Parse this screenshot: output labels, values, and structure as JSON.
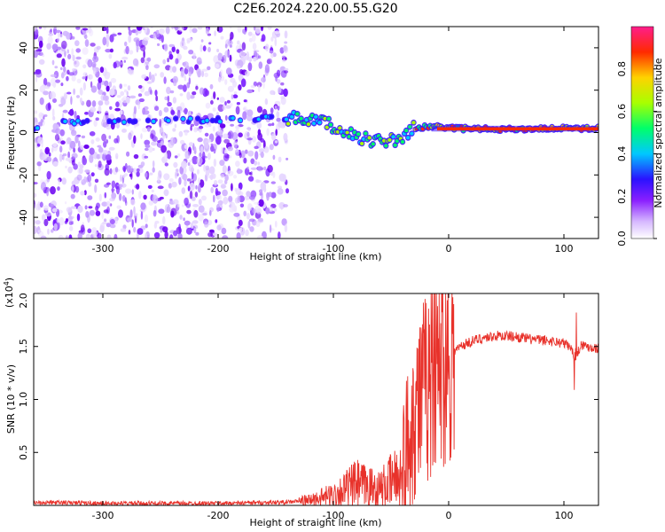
{
  "chart_data": [
    {
      "type": "heatmap",
      "title": "C2E6.2024.220.00.55.G20",
      "xlabel": "Height of straight line (km)",
      "ylabel": "Frequency (Hz)",
      "xlim": [
        -360,
        130
      ],
      "ylim": [
        -50,
        50
      ],
      "xticks": [
        -300,
        -200,
        -100,
        0,
        100
      ],
      "yticks": [
        -40,
        -20,
        0,
        20,
        40
      ],
      "colorbar": {
        "label": "Normalized spectral amplitude",
        "range": [
          0.0,
          1.0
        ],
        "ticks": [
          0.0,
          0.2,
          0.4,
          0.6,
          0.8
        ]
      },
      "noise_region_x": [
        -360,
        -140
      ],
      "ridge_frequency_hz": [
        {
          "x": -350,
          "y": 5
        },
        {
          "x": -200,
          "y": 6
        },
        {
          "x": -140,
          "y": 7
        },
        {
          "x": -110,
          "y": 5
        },
        {
          "x": -90,
          "y": 0
        },
        {
          "x": -70,
          "y": -3
        },
        {
          "x": -55,
          "y": -5
        },
        {
          "x": -40,
          "y": -2
        },
        {
          "x": -30,
          "y": 2
        },
        {
          "x": -15,
          "y": 3
        },
        {
          "x": 0,
          "y": 2
        },
        {
          "x": 50,
          "y": 1.5
        },
        {
          "x": 90,
          "y": 2
        },
        {
          "x": 130,
          "y": 2
        }
      ],
      "grid": false
    },
    {
      "type": "line",
      "xlabel": "Height of straight line (km)",
      "ylabel": "SNR (10 * v/v)",
      "y_multiplier_label": "(x10",
      "y_multiplier_exp": "4",
      "xlim": [
        -360,
        130
      ],
      "ylim": [
        0,
        2.0
      ],
      "xticks": [
        -300,
        -200,
        -100,
        0,
        100
      ],
      "yticks": [
        0.5,
        1.0,
        1.5,
        2.0
      ],
      "ytick_labels": [
        "0.5",
        "1.0",
        "1.5",
        "2.0"
      ],
      "color": "#e8322b",
      "series": [
        {
          "x": [
            -360,
            -300,
            -200,
            -140,
            -120,
            -100,
            -80,
            -60,
            -40,
            -35,
            -30,
            -25,
            -20,
            -15,
            -10,
            0,
            10,
            20,
            30,
            40,
            50,
            60,
            70,
            80,
            90,
            100,
            105,
            110,
            115,
            120,
            130
          ],
          "values": [
            0.03,
            0.02,
            0.02,
            0.03,
            0.05,
            0.1,
            0.2,
            0.15,
            0.3,
            0.6,
            0.9,
            1.0,
            1.1,
            1.2,
            1.3,
            1.4,
            1.5,
            1.55,
            1.58,
            1.6,
            1.6,
            1.59,
            1.57,
            1.56,
            1.55,
            1.53,
            1.5,
            1.4,
            1.52,
            1.5,
            1.48
          ]
        }
      ],
      "grid": false
    }
  ]
}
